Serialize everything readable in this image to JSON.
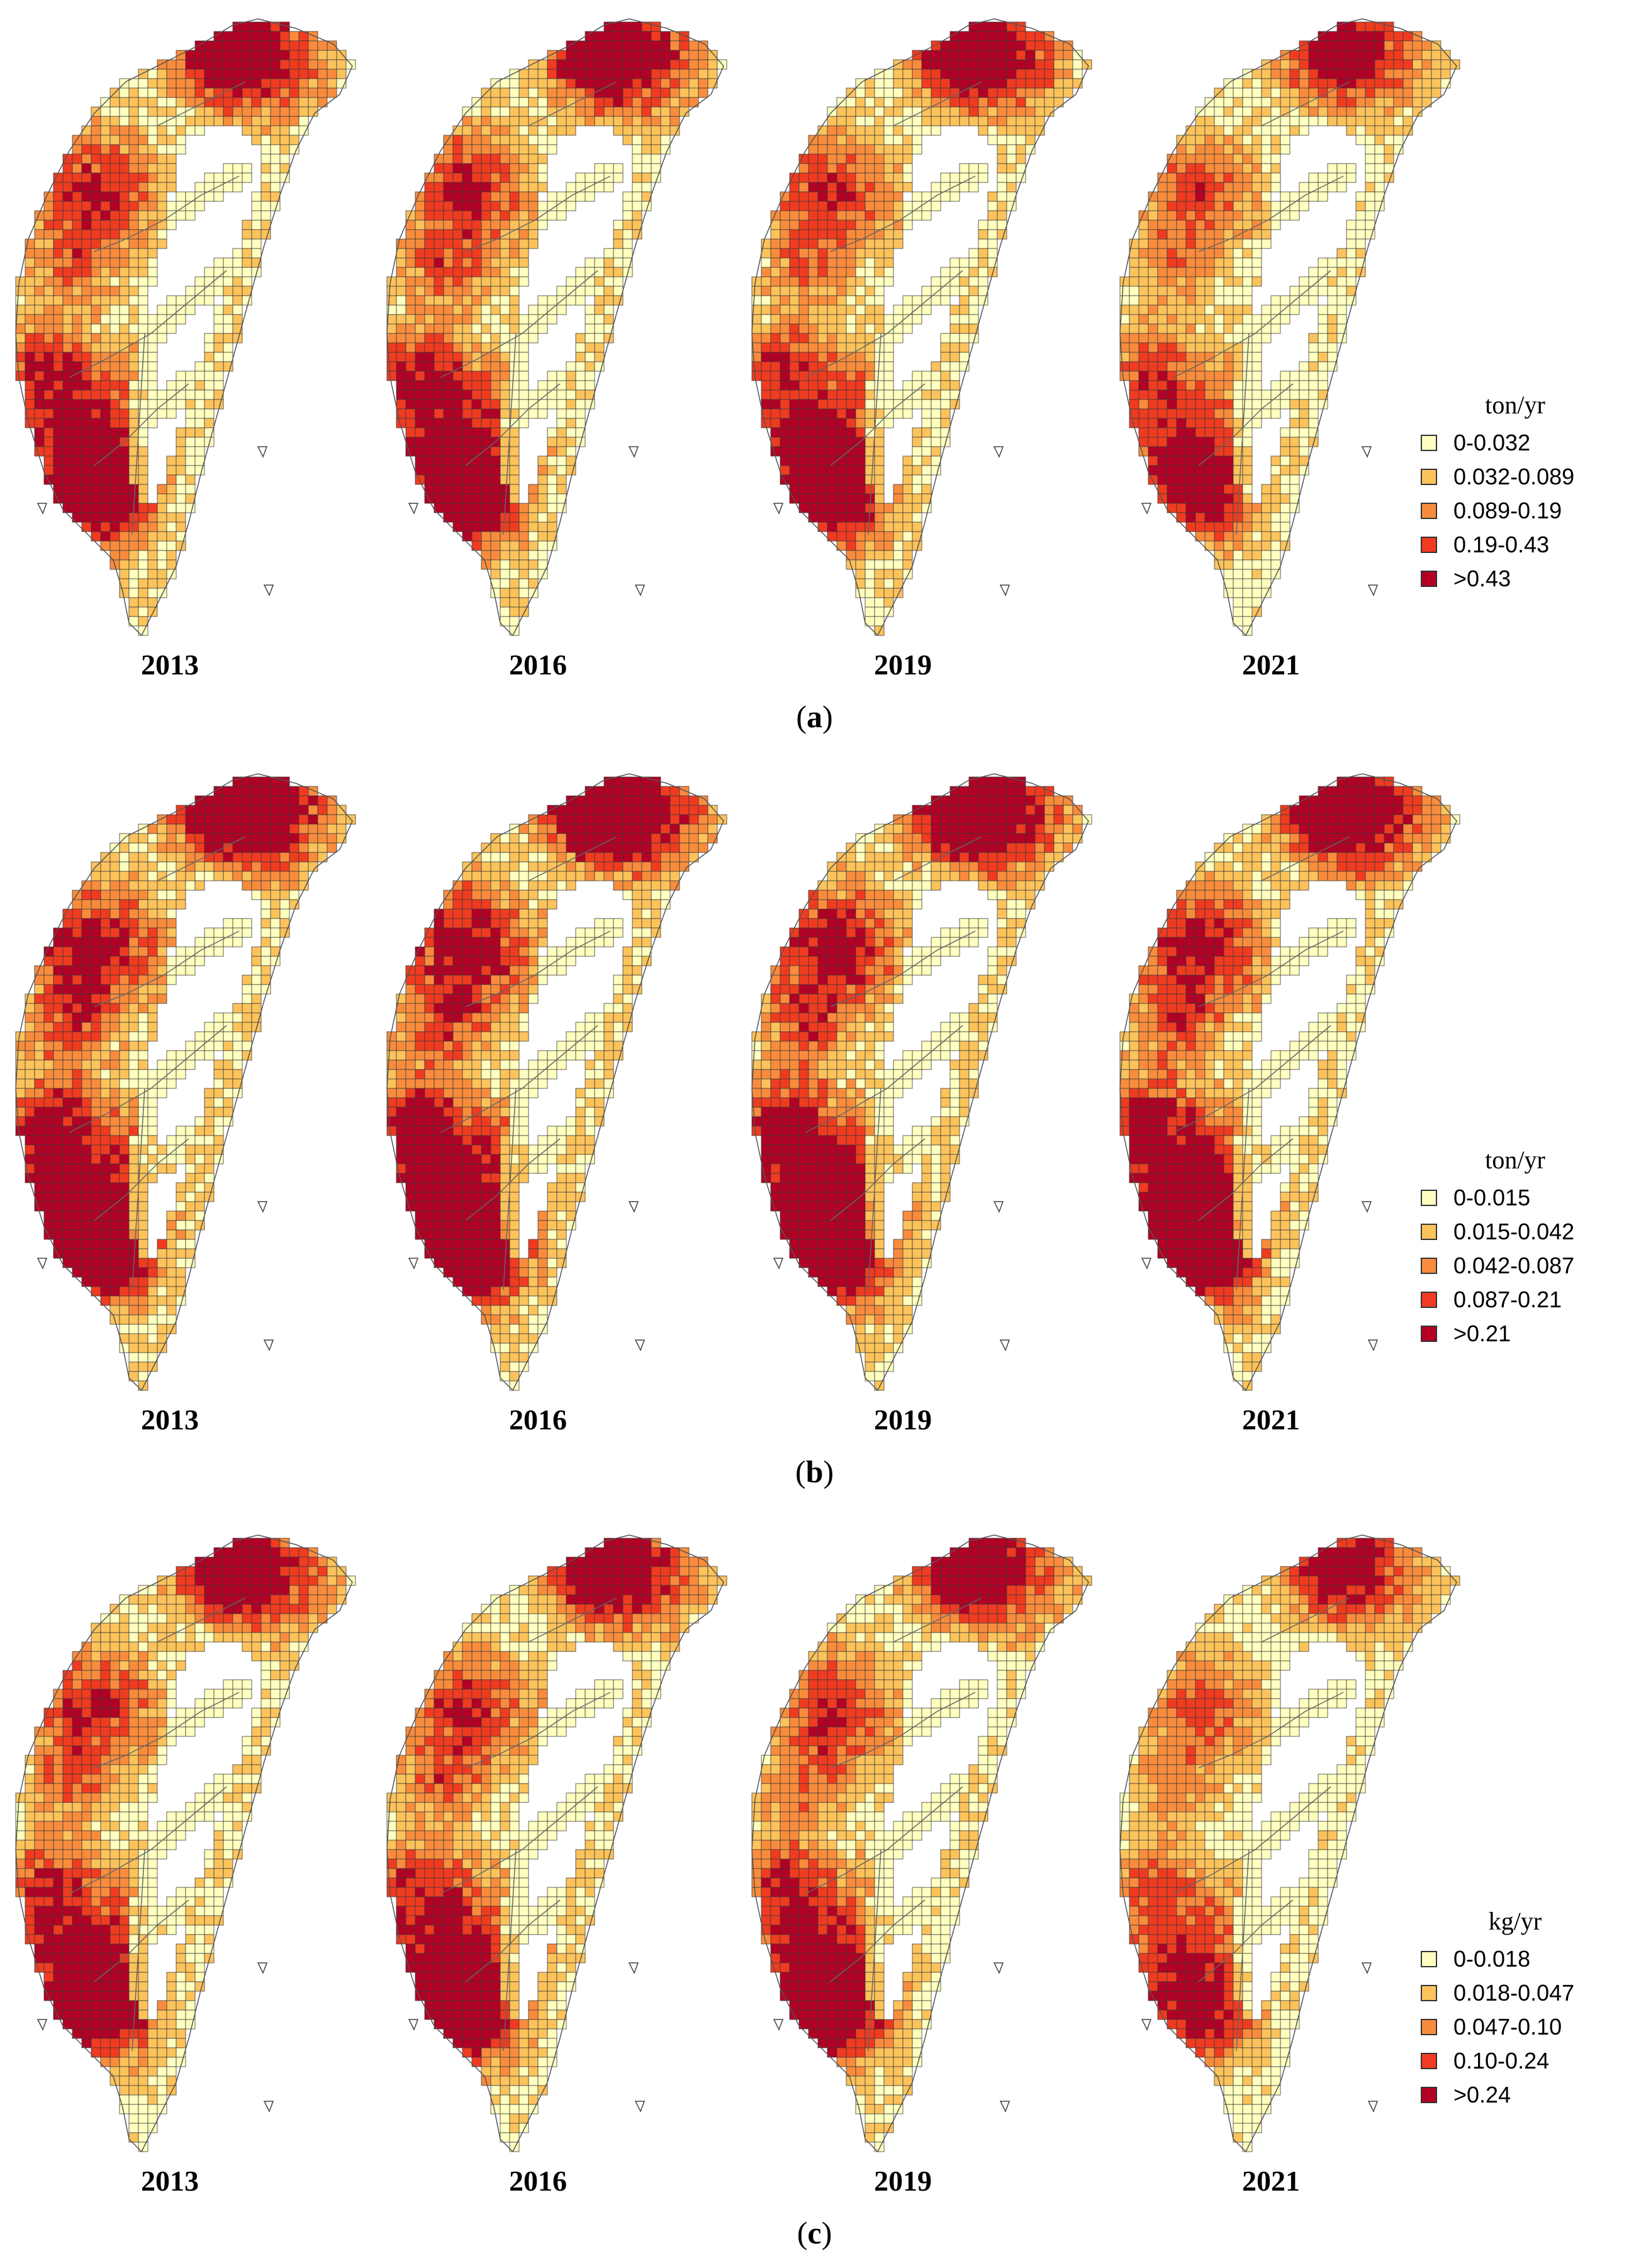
{
  "colors": [
    "#ffffbf",
    "#fdc35b",
    "#f98c3c",
    "#f03b20",
    "#b30024"
  ],
  "panels": [
    {
      "id": "a",
      "years": [
        "2013",
        "2016",
        "2019",
        "2021"
      ],
      "unit": "ton/yr",
      "classes": [
        "0-0.032",
        "0.032-0.089",
        "0.089-0.19",
        "0.19-0.43",
        ">0.43"
      ],
      "caption_letter": "a",
      "intensity": [
        1.0,
        1.02,
        0.98,
        0.85
      ]
    },
    {
      "id": "b",
      "years": [
        "2013",
        "2016",
        "2019",
        "2021"
      ],
      "unit": "ton/yr",
      "classes": [
        "0-0.015",
        "0.015-0.042",
        "0.042-0.087",
        "0.087-0.21",
        ">0.21"
      ],
      "caption_letter": "b",
      "intensity": [
        1.15,
        1.18,
        1.16,
        1.12
      ]
    },
    {
      "id": "c",
      "years": [
        "2013",
        "2016",
        "2019",
        "2021"
      ],
      "unit": "kg/yr",
      "classes": [
        "0-0.018",
        "0.018-0.047",
        "0.047-0.10",
        "0.10-0.24",
        ">0.24"
      ],
      "caption_letter": "c",
      "intensity": [
        1.0,
        1.0,
        0.98,
        0.82
      ]
    }
  ],
  "caption_open": "(",
  "caption_close": ")"
}
